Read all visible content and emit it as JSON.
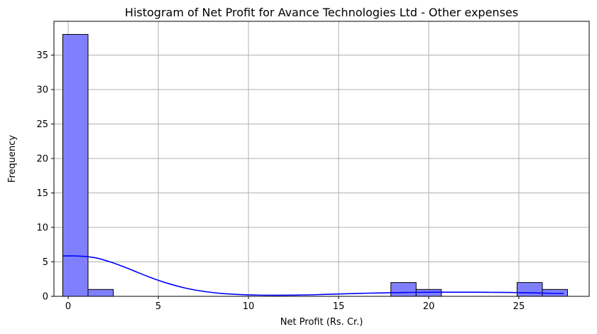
{
  "chart_data": {
    "type": "bar",
    "title": "Histogram of Net Profit for Avance Technologies Ltd - Other expenses",
    "xlabel": "Net Profit (Rs. Cr.)",
    "ylabel": "Frequency",
    "xlim": [
      -0.79,
      28.9
    ],
    "ylim": [
      0,
      39.9
    ],
    "xticks": [
      0,
      5,
      10,
      15,
      20,
      25
    ],
    "yticks": [
      0,
      5,
      10,
      15,
      20,
      25,
      30,
      35
    ],
    "bins": [
      {
        "start": -0.3,
        "end": 1.1,
        "count": 38
      },
      {
        "start": 1.1,
        "end": 2.5,
        "count": 1
      },
      {
        "start": 17.9,
        "end": 19.3,
        "count": 2
      },
      {
        "start": 19.3,
        "end": 20.7,
        "count": 1
      },
      {
        "start": 24.9,
        "end": 26.3,
        "count": 2
      },
      {
        "start": 26.3,
        "end": 27.7,
        "count": 1
      }
    ],
    "kde": {
      "x": [
        -0.3,
        0.5,
        1.5,
        2.5,
        3.5,
        4.5,
        5.5,
        6.5,
        7.5,
        8.5,
        9.5,
        10.5,
        11.5,
        12.5,
        13.5,
        14.5,
        15.5,
        16.5,
        17.5,
        18.5,
        19.5,
        20.5,
        21.5,
        22.5,
        23.5,
        24.5,
        25.5,
        26.5,
        27.5
      ],
      "y": [
        5.85,
        5.85,
        5.6,
        4.85,
        3.85,
        2.8,
        1.9,
        1.2,
        0.72,
        0.42,
        0.26,
        0.18,
        0.16,
        0.17,
        0.22,
        0.3,
        0.38,
        0.45,
        0.5,
        0.55,
        0.58,
        0.6,
        0.6,
        0.6,
        0.58,
        0.56,
        0.52,
        0.46,
        0.4
      ]
    },
    "grid": true,
    "legend": "none",
    "colors": {
      "bar_fill": "#8080ff",
      "bar_edge": "#000000",
      "kde_line": "#0000ff",
      "grid": "#b0b0b0"
    }
  }
}
